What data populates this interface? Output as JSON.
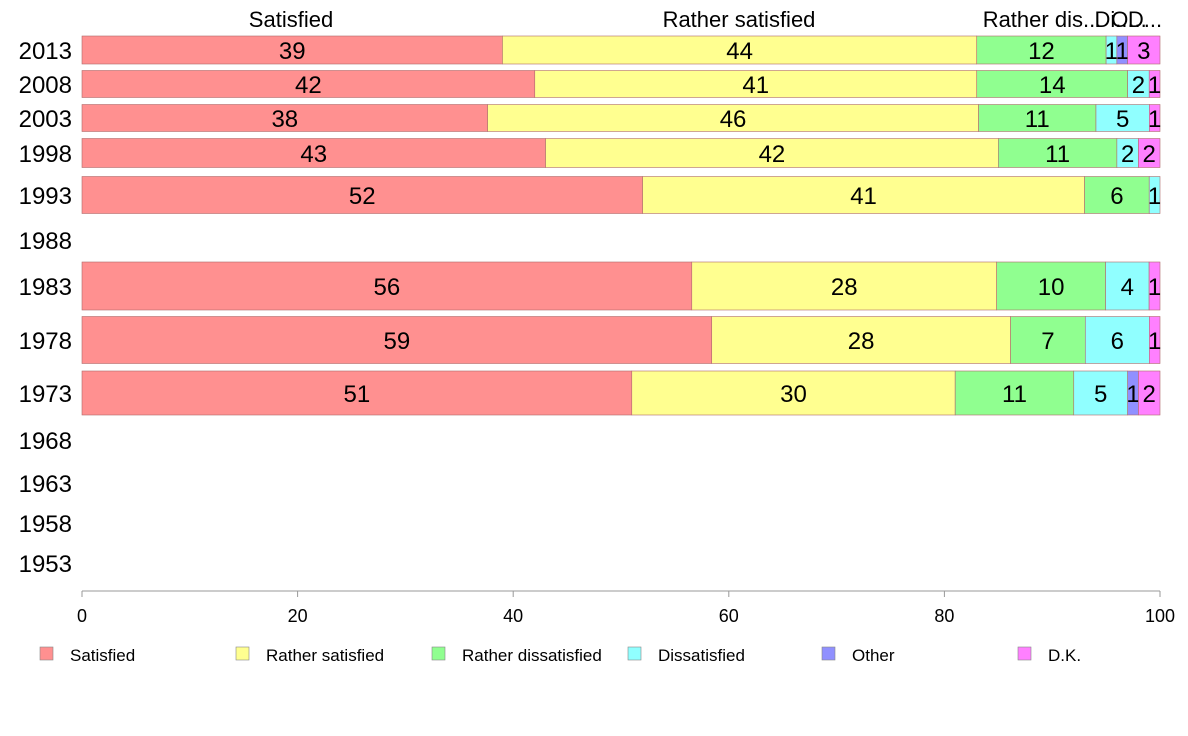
{
  "chart_data": {
    "type": "bar",
    "orientation": "horizontal",
    "stacked": true,
    "title": "",
    "xlabel": "",
    "ylabel": "",
    "xlim": [
      0,
      100
    ],
    "xticks": [
      0,
      20,
      40,
      60,
      80,
      100
    ],
    "grid": false,
    "legend_position": "bottom",
    "top_category_labels": [
      "Satisfied",
      "Rather satisfied",
      "Rather dis...",
      "Di...",
      "O...",
      "D..."
    ],
    "categories": [
      "2013",
      "2008",
      "2003",
      "1998",
      "1993",
      "1988",
      "1983",
      "1978",
      "1973",
      "1968",
      "1963",
      "1958",
      "1953"
    ],
    "series": [
      {
        "name": "Satisfied",
        "color": "#ff9090",
        "values": [
          39,
          42,
          38,
          43,
          52,
          null,
          56,
          59,
          51,
          null,
          null,
          null,
          null
        ]
      },
      {
        "name": "Rather satisfied",
        "color": "#ffff90",
        "values": [
          44,
          41,
          46,
          42,
          41,
          null,
          28,
          28,
          30,
          null,
          null,
          null,
          null
        ]
      },
      {
        "name": "Rather dissatisfied",
        "color": "#90ff90",
        "values": [
          12,
          14,
          11,
          11,
          6,
          null,
          10,
          7,
          11,
          null,
          null,
          null,
          null
        ]
      },
      {
        "name": "Dissatisfied",
        "color": "#90ffff",
        "values": [
          1,
          2,
          5,
          2,
          1,
          null,
          4,
          6,
          5,
          null,
          null,
          null,
          null
        ]
      },
      {
        "name": "Other",
        "color": "#9090ff",
        "values": [
          1,
          0,
          0,
          0,
          0,
          null,
          0,
          0,
          1,
          null,
          null,
          null,
          null
        ]
      },
      {
        "name": "D.K.",
        "color": "#ff80ff",
        "values": [
          3,
          1,
          1,
          2,
          0,
          null,
          1,
          1,
          2,
          null,
          null,
          null,
          null
        ]
      }
    ]
  }
}
